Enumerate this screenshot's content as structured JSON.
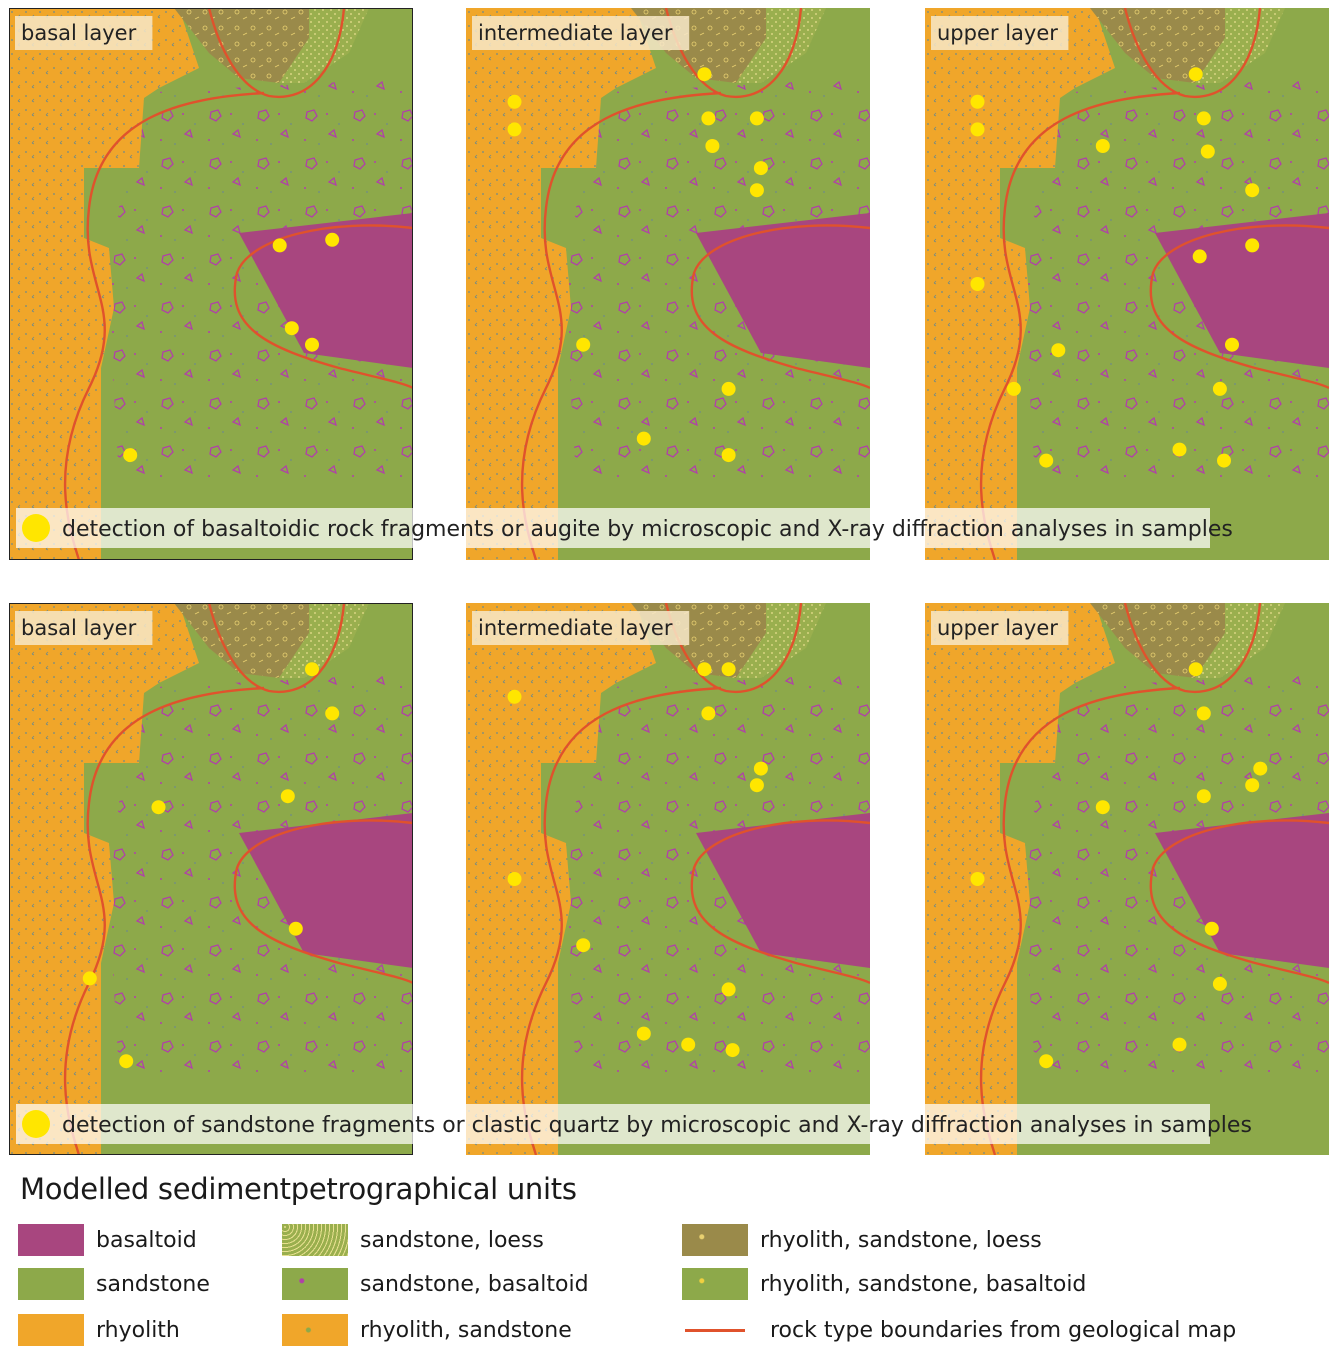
{
  "panels": [
    {
      "label": "basal layer",
      "row": 0,
      "col": 0,
      "dots": [
        [
          0.67,
          0.43
        ],
        [
          0.8,
          0.42
        ],
        [
          0.7,
          0.58
        ],
        [
          0.75,
          0.61
        ],
        [
          0.3,
          0.81
        ]
      ]
    },
    {
      "label": "intermediate layer",
      "row": 0,
      "col": 1,
      "dots": [
        [
          0.59,
          0.12
        ],
        [
          0.12,
          0.17
        ],
        [
          0.12,
          0.22
        ],
        [
          0.6,
          0.2
        ],
        [
          0.72,
          0.2
        ],
        [
          0.61,
          0.25
        ],
        [
          0.73,
          0.29
        ],
        [
          0.72,
          0.33
        ],
        [
          0.29,
          0.61
        ],
        [
          0.65,
          0.69
        ],
        [
          0.44,
          0.78
        ],
        [
          0.65,
          0.81
        ]
      ]
    },
    {
      "label": "upper layer",
      "row": 0,
      "col": 2,
      "dots": [
        [
          0.67,
          0.12
        ],
        [
          0.13,
          0.17
        ],
        [
          0.13,
          0.22
        ],
        [
          0.44,
          0.25
        ],
        [
          0.69,
          0.2
        ],
        [
          0.7,
          0.26
        ],
        [
          0.81,
          0.33
        ],
        [
          0.68,
          0.45
        ],
        [
          0.81,
          0.43
        ],
        [
          0.13,
          0.5
        ],
        [
          0.33,
          0.62
        ],
        [
          0.76,
          0.61
        ],
        [
          0.22,
          0.69
        ],
        [
          0.73,
          0.69
        ],
        [
          0.3,
          0.82
        ],
        [
          0.63,
          0.8
        ],
        [
          0.74,
          0.82
        ]
      ]
    },
    {
      "label": "basal layer",
      "row": 1,
      "col": 0,
      "dots": [
        [
          0.75,
          0.12
        ],
        [
          0.8,
          0.2
        ],
        [
          0.37,
          0.37
        ],
        [
          0.69,
          0.35
        ],
        [
          0.71,
          0.59
        ],
        [
          0.2,
          0.68
        ],
        [
          0.29,
          0.83
        ]
      ]
    },
    {
      "label": "intermediate layer",
      "row": 1,
      "col": 1,
      "dots": [
        [
          0.59,
          0.12
        ],
        [
          0.65,
          0.12
        ],
        [
          0.12,
          0.17
        ],
        [
          0.6,
          0.2
        ],
        [
          0.73,
          0.3
        ],
        [
          0.72,
          0.33
        ],
        [
          0.12,
          0.5
        ],
        [
          0.29,
          0.62
        ],
        [
          0.65,
          0.7
        ],
        [
          0.44,
          0.78
        ],
        [
          0.55,
          0.8
        ],
        [
          0.66,
          0.81
        ]
      ]
    },
    {
      "label": "upper layer",
      "row": 1,
      "col": 2,
      "dots": [
        [
          0.67,
          0.12
        ],
        [
          0.69,
          0.2
        ],
        [
          0.44,
          0.37
        ],
        [
          0.69,
          0.35
        ],
        [
          0.83,
          0.3
        ],
        [
          0.81,
          0.33
        ],
        [
          0.13,
          0.5
        ],
        [
          0.71,
          0.59
        ],
        [
          0.73,
          0.69
        ],
        [
          0.63,
          0.8
        ],
        [
          0.3,
          0.83
        ]
      ]
    }
  ],
  "notes": [
    "detection of basaltoidic rock fragments or augite by microscopic and X-ray diffraction analyses in samples",
    "detection of sandstone fragments or clastic quartz by microscopic and X-ray diffraction analyses in samples"
  ],
  "colors": {
    "basaltoid": "#a8467f",
    "sandstone": "#8da94a",
    "rhyolith": "#f0a62a",
    "mixed_brown": "#9a8a4a",
    "boundary": "#e0522c",
    "dot": "#ffe600"
  },
  "legend": {
    "title": "Modelled sedimentpetrographical units",
    "items": [
      {
        "label": "basaltoid",
        "swatch": "basaltoid"
      },
      {
        "label": "sandstone",
        "swatch": "sandstone"
      },
      {
        "label": "rhyolith",
        "swatch": "rhyolith"
      },
      {
        "label": "sandstone, loess",
        "swatch": "sandstone-loess"
      },
      {
        "label": "sandstone, basaltoid",
        "swatch": "sandstone-basaltoid"
      },
      {
        "label": "rhyolith, sandstone",
        "swatch": "rhyolith-sandstone"
      },
      {
        "label": "rhyolith, sandstone, loess",
        "swatch": "rhyolith-sandstone-loess"
      },
      {
        "label": "rhyolith, sandstone, basaltoid",
        "swatch": "rhyolith-sandstone-basaltoid"
      },
      {
        "label": "rock type boundaries from geological map",
        "swatch": "line"
      }
    ]
  }
}
